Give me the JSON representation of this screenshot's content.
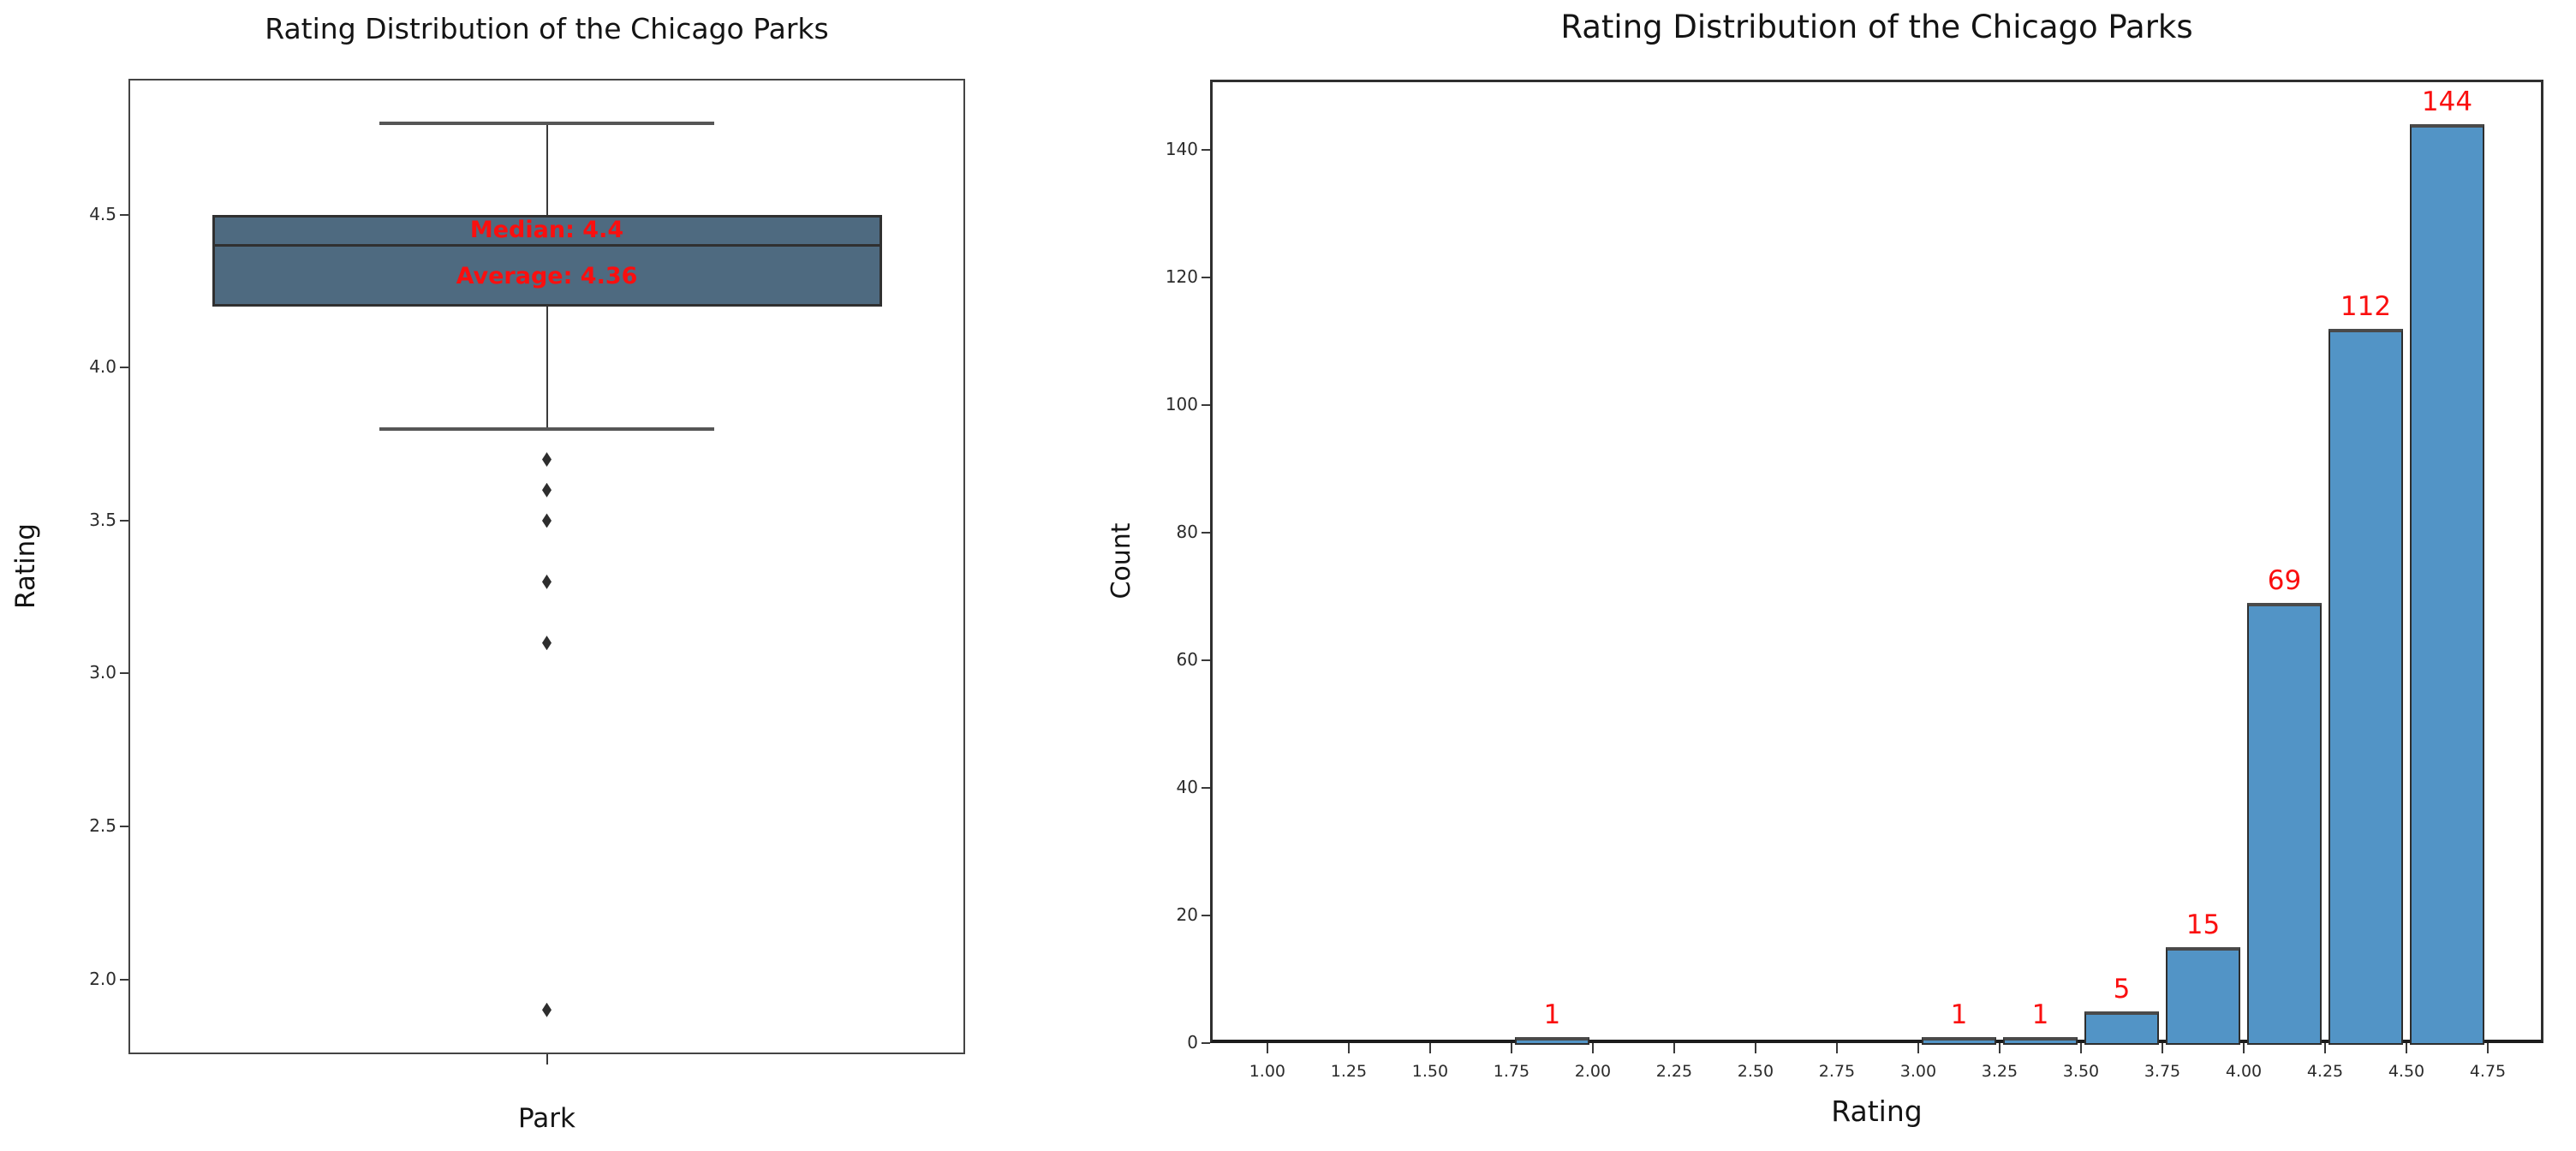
{
  "chart_data": [
    {
      "type": "box",
      "title": "Rating Distribution of the Chicago Parks",
      "xlabel": "Park",
      "ylabel": "Rating",
      "ylim": [
        1.755,
        4.945
      ],
      "yticks": [
        4.5,
        4.0,
        3.5,
        3.0,
        2.5,
        2.0
      ],
      "ytick_labels": [
        "4.5",
        "4.0",
        "3.5",
        "3.0",
        "2.5",
        "2.0"
      ],
      "grid": false,
      "box": {
        "q1": 4.2,
        "median": 4.4,
        "q3": 4.5,
        "whisker_low": 3.8,
        "whisker_high": 4.8,
        "outliers": [
          3.7,
          3.6,
          3.5,
          3.3,
          3.1,
          1.9
        ],
        "average": 4.36
      },
      "annotations": [
        {
          "text": "Median: 4.4"
        },
        {
          "text": "Average: 4.36"
        }
      ],
      "colors": {
        "box_fill": "#4e6a80",
        "box_edge": "#303030",
        "annotation": "#fa0f0f",
        "flier": "#2d2d2d"
      }
    },
    {
      "type": "bar",
      "title": "Rating Distribution of the Chicago Parks",
      "xlabel": "Rating",
      "ylabel": "Count",
      "xlim": [
        0.824,
        4.921
      ],
      "ylim": [
        0,
        151
      ],
      "xticks": [
        1.0,
        1.25,
        1.5,
        1.75,
        2.0,
        2.25,
        2.5,
        2.75,
        3.0,
        3.25,
        3.5,
        3.75,
        4.0,
        4.25,
        4.5,
        4.75
      ],
      "xtick_labels": [
        "1.00",
        "1.25",
        "1.50",
        "1.75",
        "2.00",
        "2.25",
        "2.50",
        "2.75",
        "3.00",
        "3.25",
        "3.50",
        "3.75",
        "4.00",
        "4.25",
        "4.50",
        "4.75"
      ],
      "yticks": [
        0,
        20,
        40,
        60,
        80,
        100,
        120,
        140
      ],
      "ytick_labels": [
        "0",
        "20",
        "40",
        "60",
        "80",
        "100",
        "120",
        "140"
      ],
      "grid": false,
      "bar_width": 0.23,
      "bin_width": 0.25,
      "bars": [
        {
          "x": 1.875,
          "count": 1,
          "label": "1"
        },
        {
          "x": 3.125,
          "count": 1,
          "label": "1"
        },
        {
          "x": 3.375,
          "count": 1,
          "label": "1"
        },
        {
          "x": 3.625,
          "count": 5,
          "label": "5"
        },
        {
          "x": 3.875,
          "count": 15,
          "label": "15"
        },
        {
          "x": 4.125,
          "count": 69,
          "label": "69"
        },
        {
          "x": 4.375,
          "count": 112,
          "label": "112"
        },
        {
          "x": 4.625,
          "count": 144,
          "label": "144"
        }
      ],
      "colors": {
        "bar_fill": "#5294c6",
        "bar_edge": "#2e2e2e",
        "count_label": "#fa0f0f"
      }
    }
  ]
}
